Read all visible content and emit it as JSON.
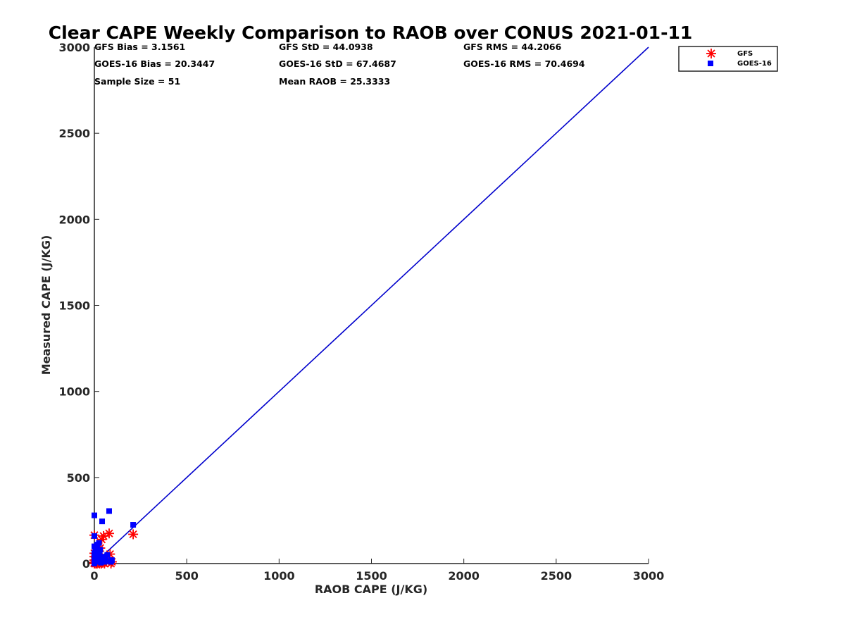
{
  "colors": {
    "gfs": "#ff0000",
    "goes16": "#0000ff",
    "one_to_one_line": "#0000cc",
    "axis": "#262626"
  },
  "chart_data": {
    "type": "scatter",
    "title": "Clear CAPE Weekly Comparison to RAOB over CONUS 2021-01-11",
    "xlabel": "RAOB CAPE (J/KG)",
    "ylabel": "Measured CAPE (J/KG)",
    "xlim": [
      0,
      3000
    ],
    "ylim": [
      0,
      3000
    ],
    "xticks": [
      0,
      500,
      1000,
      1500,
      2000,
      2500,
      3000
    ],
    "yticks": [
      0,
      500,
      1000,
      1500,
      2000,
      2500,
      3000
    ],
    "reference_line": {
      "name": "1:1",
      "x": [
        0,
        3000
      ],
      "y": [
        0,
        3000
      ]
    },
    "legend_position": "top-right outside",
    "stats": {
      "gfs_bias": "GFS Bias = 3.1561",
      "gfs_std": "GFS StD = 44.0938",
      "gfs_rms": "GFS RMS = 44.2066",
      "goes_bias": "GOES-16 Bias = 20.3447",
      "goes_std": "GOES-16 StD = 67.4687",
      "goes_rms": "GOES-16 RMS = 70.4694",
      "sample_size": "Sample Size = 51",
      "mean_raob": "Mean RAOB = 25.3333"
    },
    "series": [
      {
        "name": "GFS",
        "marker": "asterisk",
        "points": [
          [
            0,
            165
          ],
          [
            0,
            60
          ],
          [
            0,
            40
          ],
          [
            0,
            20
          ],
          [
            0,
            5
          ],
          [
            0,
            0
          ],
          [
            5,
            10
          ],
          [
            8,
            0
          ],
          [
            10,
            30
          ],
          [
            12,
            50
          ],
          [
            15,
            0
          ],
          [
            18,
            20
          ],
          [
            20,
            70
          ],
          [
            22,
            5
          ],
          [
            25,
            40
          ],
          [
            28,
            0
          ],
          [
            30,
            15
          ],
          [
            32,
            90
          ],
          [
            35,
            10
          ],
          [
            38,
            0
          ],
          [
            40,
            140
          ],
          [
            42,
            30
          ],
          [
            45,
            5
          ],
          [
            50,
            160
          ],
          [
            55,
            0
          ],
          [
            60,
            20
          ],
          [
            65,
            10
          ],
          [
            70,
            30
          ],
          [
            80,
            175
          ],
          [
            85,
            55
          ],
          [
            90,
            0
          ],
          [
            95,
            10
          ],
          [
            210,
            170
          ]
        ]
      },
      {
        "name": "GOES-16",
        "marker": "square",
        "points": [
          [
            0,
            280
          ],
          [
            0,
            160
          ],
          [
            0,
            100
          ],
          [
            0,
            60
          ],
          [
            0,
            30
          ],
          [
            0,
            0
          ],
          [
            5,
            80
          ],
          [
            8,
            20
          ],
          [
            10,
            90
          ],
          [
            12,
            50
          ],
          [
            15,
            110
          ],
          [
            18,
            70
          ],
          [
            20,
            10
          ],
          [
            22,
            40
          ],
          [
            25,
            120
          ],
          [
            28,
            60
          ],
          [
            30,
            30
          ],
          [
            32,
            80
          ],
          [
            35,
            5
          ],
          [
            40,
            40
          ],
          [
            42,
            245
          ],
          [
            50,
            20
          ],
          [
            55,
            10
          ],
          [
            60,
            35
          ],
          [
            70,
            50
          ],
          [
            80,
            305
          ],
          [
            85,
            15
          ],
          [
            90,
            10
          ],
          [
            95,
            20
          ],
          [
            210,
            225
          ]
        ]
      }
    ]
  }
}
